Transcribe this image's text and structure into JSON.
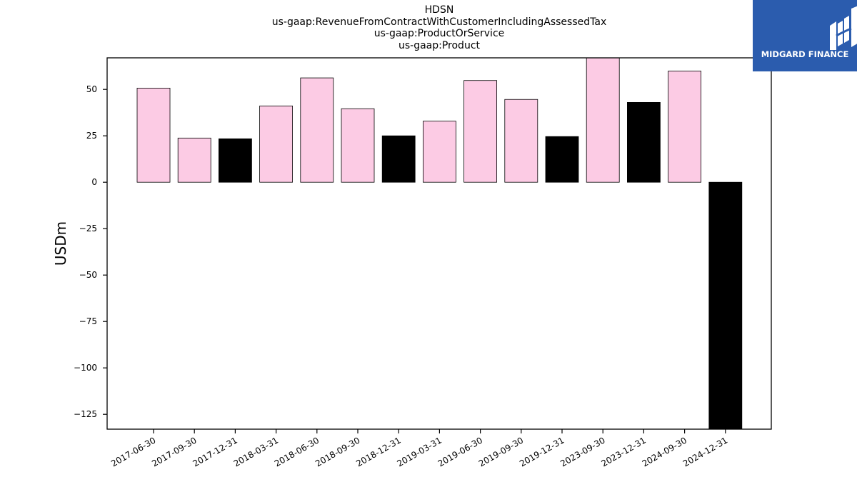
{
  "chart_data": {
    "type": "bar",
    "title_lines": [
      "HDSN",
      "us-gaap:RevenueFromContractWithCustomerIncludingAssessedTax",
      "us-gaap:ProductOrService",
      "us-gaap:Product"
    ],
    "xlabel": "",
    "ylabel": "USDm",
    "ylim": [
      -133,
      67
    ],
    "yticks": [
      50,
      25,
      0,
      -25,
      -50,
      -75,
      -100,
      -125
    ],
    "ytick_labels": [
      "50",
      "25",
      "0",
      "−25",
      "−50",
      "−75",
      "−100",
      "−125"
    ],
    "categories": [
      "2017-06-30",
      "2017-09-30",
      "2017-12-31",
      "2018-03-31",
      "2018-06-30",
      "2018-09-30",
      "2018-12-31",
      "2019-03-31",
      "2019-06-30",
      "2019-09-30",
      "2019-12-31",
      "2023-09-30",
      "2023-12-31",
      "2024-09-30",
      "2024-12-31"
    ],
    "values": [
      50.7,
      23.8,
      23.4,
      41.1,
      56.2,
      39.6,
      25.0,
      32.9,
      54.8,
      44.6,
      24.6,
      68.0,
      43.0,
      59.9,
      -140.0
    ],
    "bar_colors": [
      "#fccbe4",
      "#fccbe4",
      "#000000",
      "#fccbe4",
      "#fccbe4",
      "#fccbe4",
      "#000000",
      "#fccbe4",
      "#fccbe4",
      "#fccbe4",
      "#000000",
      "#fccbe4",
      "#000000",
      "#fccbe4",
      "#000000"
    ],
    "grid": false
  },
  "logo": {
    "text": "MIDGARD FINANCE",
    "background": "#2b5cae"
  }
}
